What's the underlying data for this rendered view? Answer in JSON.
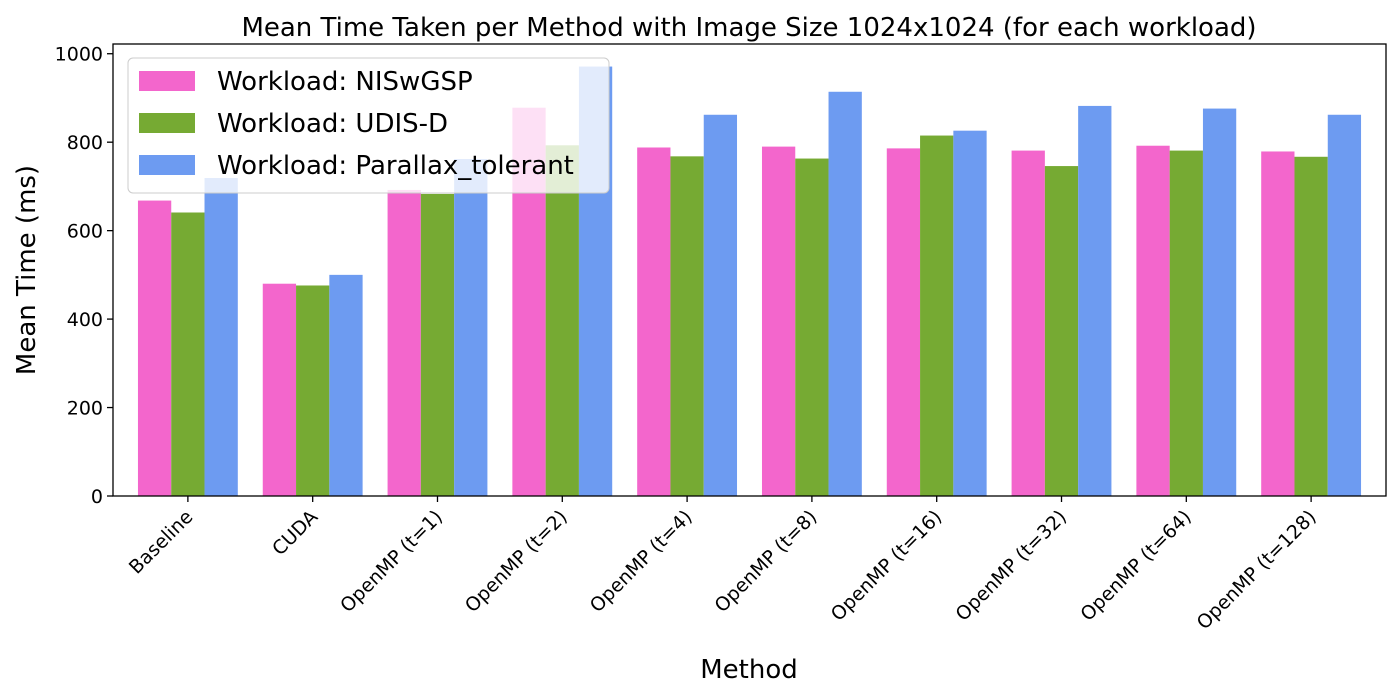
{
  "chart_data": {
    "type": "bar",
    "title": "Mean Time Taken per Method with Image Size 1024x1024 (for each workload)",
    "xlabel": "Method",
    "ylabel": "Mean Time (ms)",
    "categories": [
      "Baseline",
      "CUDA",
      "OpenMP (t=1)",
      "OpenMP (t=2)",
      "OpenMP (t=4)",
      "OpenMP (t=8)",
      "OpenMP (t=16)",
      "OpenMP (t=32)",
      "OpenMP (t=64)",
      "OpenMP (t=128)"
    ],
    "series": [
      {
        "name": "Workload: NISwGSP",
        "color": "#f366cc",
        "values": [
          668,
          480,
          692,
          878,
          788,
          790,
          786,
          781,
          792,
          779
        ]
      },
      {
        "name": "Workload: UDIS-D",
        "color": "#76aa33",
        "values": [
          641,
          476,
          683,
          793,
          768,
          763,
          815,
          746,
          781,
          767
        ]
      },
      {
        "name": "Workload: Parallax_tolerant",
        "color": "#6d9bf1",
        "values": [
          719,
          500,
          762,
          971,
          862,
          914,
          826,
          882,
          876,
          862
        ]
      }
    ],
    "yticks": [
      0,
      200,
      400,
      600,
      800,
      1000
    ],
    "ylim": [
      0,
      1022
    ],
    "grid": false,
    "legend_position": "top-left"
  }
}
